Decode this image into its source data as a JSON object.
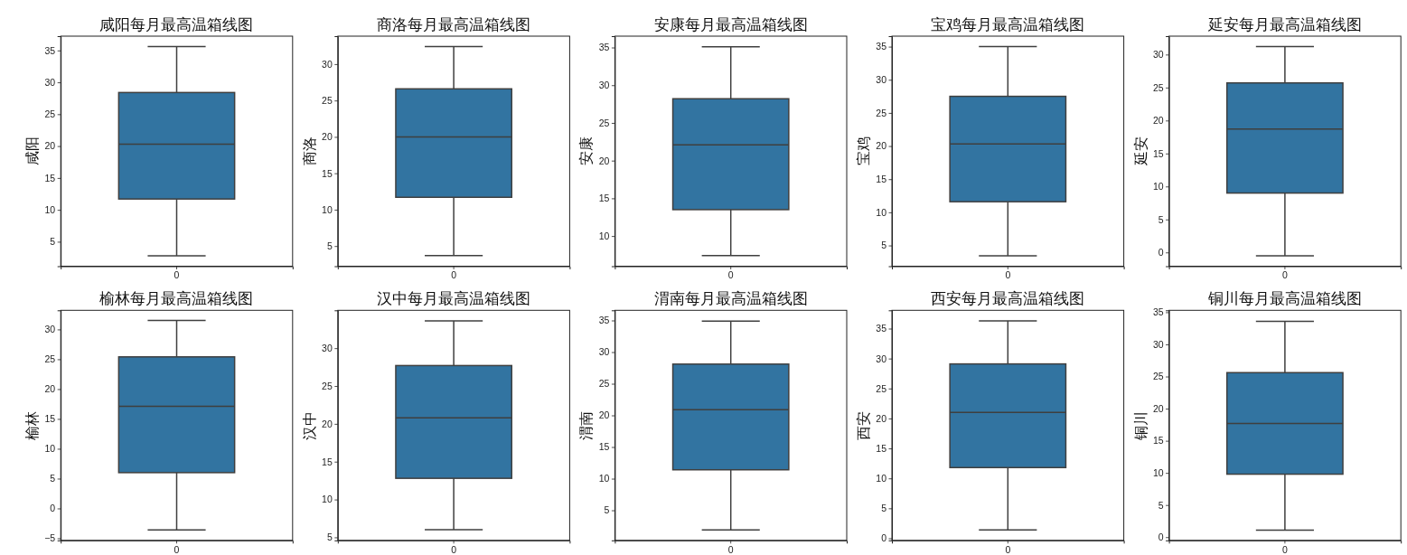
{
  "chart_data": [
    {
      "type": "box",
      "title": "咸阳每月最高温箱线图",
      "ylabel": "咸阳",
      "categories": [
        "0"
      ],
      "color": "#3274a1",
      "ylim": [
        1.16,
        37.24
      ],
      "yticks": [
        5,
        10,
        15,
        20,
        25,
        30,
        35
      ],
      "boxes": [
        {
          "low": 2.8,
          "q1": 11.7,
          "median": 20.3,
          "q3": 28.4,
          "high": 35.6
        }
      ]
    },
    {
      "type": "box",
      "title": "商洛每月最高温箱线图",
      "ylabel": "商洛",
      "categories": [
        "0"
      ],
      "color": "#3274a1",
      "ylim": [
        2.23,
        33.84
      ],
      "yticks": [
        5,
        10,
        15,
        20,
        25,
        30
      ],
      "boxes": [
        {
          "low": 3.7,
          "q1": 11.7,
          "median": 20.0,
          "q3": 26.6,
          "high": 32.4
        }
      ]
    },
    {
      "type": "box",
      "title": "安康每月最高温箱线图",
      "ylabel": "安康",
      "categories": [
        "0"
      ],
      "color": "#3274a1",
      "ylim": [
        6.0,
        36.5
      ],
      "yticks": [
        10,
        15,
        20,
        25,
        30,
        35
      ],
      "boxes": [
        {
          "low": 7.4,
          "q1": 13.5,
          "median": 22.1,
          "q3": 28.2,
          "high": 35.1
        }
      ]
    },
    {
      "type": "box",
      "title": "宝鸡每月最高温箱线图",
      "ylabel": "宝鸡",
      "categories": [
        "0"
      ],
      "color": "#3274a1",
      "ylim": [
        1.87,
        36.58
      ],
      "yticks": [
        5,
        10,
        15,
        20,
        25,
        30,
        35
      ],
      "boxes": [
        {
          "low": 3.45,
          "q1": 11.6,
          "median": 20.3,
          "q3": 27.5,
          "high": 35.0
        }
      ]
    },
    {
      "type": "box",
      "title": "延安每月最高温箱线图",
      "ylabel": "延安",
      "categories": [
        "0"
      ],
      "color": "#3274a1",
      "ylim": [
        -2.09,
        32.79
      ],
      "yticks": [
        0,
        5,
        10,
        15,
        20,
        25,
        30
      ],
      "boxes": [
        {
          "low": -0.5,
          "q1": 9.0,
          "median": 18.7,
          "q3": 25.7,
          "high": 31.2
        }
      ]
    },
    {
      "type": "box",
      "title": "榆林每月最高温箱线图",
      "ylabel": "榆林",
      "categories": [
        "0"
      ],
      "color": "#3274a1",
      "ylim": [
        -5.35,
        33.2
      ],
      "yticks": [
        {
          "value": -5,
          "label": "−5"
        },
        0,
        5,
        10,
        15,
        20,
        25,
        30
      ],
      "boxes": [
        {
          "low": -3.6,
          "q1": 6.0,
          "median": 17.1,
          "q3": 25.4,
          "high": 31.5
        }
      ]
    },
    {
      "type": "box",
      "title": "汉中每月最高温箱线图",
      "ylabel": "汉中",
      "categories": [
        "0"
      ],
      "color": "#3274a1",
      "ylim": [
        4.6,
        35.0
      ],
      "yticks": [
        5,
        10,
        15,
        20,
        25,
        30
      ],
      "boxes": [
        {
          "low": 6.0,
          "q1": 12.8,
          "median": 20.8,
          "q3": 27.7,
          "high": 33.6
        }
      ]
    },
    {
      "type": "box",
      "title": "渭南每月最高温箱线图",
      "ylabel": "渭南",
      "categories": [
        "0"
      ],
      "color": "#3274a1",
      "ylim": [
        0.25,
        36.6
      ],
      "yticks": [
        5,
        10,
        15,
        20,
        25,
        30,
        35
      ],
      "boxes": [
        {
          "low": 1.9,
          "q1": 11.4,
          "median": 20.9,
          "q3": 28.1,
          "high": 34.9
        }
      ]
    },
    {
      "type": "box",
      "title": "西安每月最高温箱线图",
      "ylabel": "西安",
      "categories": [
        "0"
      ],
      "color": "#3274a1",
      "ylim": [
        -0.35,
        38.05
      ],
      "yticks": [
        0,
        5,
        10,
        15,
        20,
        25,
        30,
        35
      ],
      "boxes": [
        {
          "low": 1.4,
          "q1": 11.8,
          "median": 21.0,
          "q3": 29.1,
          "high": 36.3
        }
      ]
    },
    {
      "type": "box",
      "title": "铜川每月最高温箱线图",
      "ylabel": "铜川",
      "categories": [
        "0"
      ],
      "color": "#3274a1",
      "ylim": [
        -0.5,
        35.3
      ],
      "yticks": [
        0,
        5,
        10,
        15,
        20,
        25,
        30,
        35
      ],
      "boxes": [
        {
          "low": 1.1,
          "q1": 9.8,
          "median": 17.7,
          "q3": 25.6,
          "high": 33.6
        }
      ]
    }
  ]
}
